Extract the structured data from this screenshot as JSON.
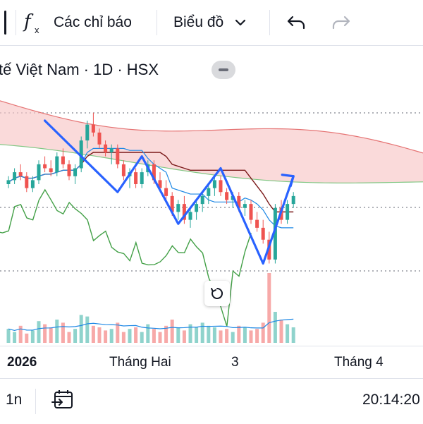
{
  "toolbar": {
    "fx_label": "f",
    "indicators_label": "Các chỉ báo",
    "chart_type_label": "Biểu đồ"
  },
  "legend": {
    "symbol_text": "tế Việt Nam · 1D · HSX"
  },
  "xaxis": {
    "labels": [
      "2026",
      "Tháng Hai",
      "3",
      "Tháng 4"
    ]
  },
  "bottombar": {
    "range_label": "1n",
    "time_label": "20:14:20"
  },
  "colors": {
    "up": "#26a69a",
    "down": "#ef5350",
    "cloud": "#f7c6c6",
    "drawing": "#2962ff",
    "signal": "#1e88e5",
    "lagging": "#43a047",
    "base": "#7b1a1a"
  },
  "chart_data": {
    "type": "candlestick",
    "xlabels": [
      "2026",
      "Tháng Hai",
      "3",
      "Tháng 4"
    ],
    "candles": [
      [
        100,
        102,
        99,
        101
      ],
      [
        101,
        104,
        100,
        103
      ],
      [
        103,
        105,
        101,
        102
      ],
      [
        102,
        103,
        98,
        99
      ],
      [
        99,
        102,
        98,
        101
      ],
      [
        101,
        106,
        100,
        105
      ],
      [
        105,
        107,
        103,
        104
      ],
      [
        104,
        106,
        102,
        103
      ],
      [
        103,
        108,
        102,
        107
      ],
      [
        107,
        109,
        104,
        105
      ],
      [
        105,
        106,
        101,
        102
      ],
      [
        102,
        105,
        100,
        104
      ],
      [
        104,
        112,
        103,
        111
      ],
      [
        111,
        116,
        109,
        115
      ],
      [
        115,
        118,
        112,
        113
      ],
      [
        113,
        114,
        109,
        110
      ],
      [
        110,
        111,
        107,
        108
      ],
      [
        108,
        110,
        105,
        109
      ],
      [
        109,
        110,
        104,
        105
      ],
      [
        105,
        106,
        101,
        102
      ],
      [
        102,
        104,
        99,
        103
      ],
      [
        103,
        104,
        99,
        100
      ],
      [
        100,
        104,
        99,
        103
      ],
      [
        103,
        106,
        102,
        105
      ],
      [
        105,
        106,
        100,
        101
      ],
      [
        101,
        103,
        98,
        99
      ],
      [
        99,
        101,
        96,
        97
      ],
      [
        97,
        98,
        92,
        93
      ],
      [
        93,
        96,
        91,
        95
      ],
      [
        95,
        97,
        90,
        91
      ],
      [
        91,
        94,
        89,
        93
      ],
      [
        93,
        96,
        91,
        95
      ],
      [
        95,
        98,
        93,
        97
      ],
      [
        97,
        100,
        95,
        99
      ],
      [
        99,
        102,
        97,
        101
      ],
      [
        101,
        102,
        97,
        98
      ],
      [
        98,
        99,
        95,
        96
      ],
      [
        96,
        98,
        94,
        97
      ],
      [
        97,
        98,
        93,
        94
      ],
      [
        94,
        96,
        92,
        95
      ],
      [
        95,
        96,
        90,
        91
      ],
      [
        91,
        93,
        88,
        89
      ],
      [
        89,
        91,
        85,
        86
      ],
      [
        86,
        88,
        80,
        81
      ],
      [
        81,
        95,
        80,
        94
      ],
      [
        94,
        96,
        90,
        91
      ],
      [
        91,
        96,
        90,
        95
      ],
      [
        95,
        98,
        94,
        97
      ]
    ],
    "volume": [
      18,
      14,
      22,
      12,
      16,
      28,
      24,
      20,
      30,
      26,
      14,
      18,
      36,
      34,
      22,
      20,
      16,
      18,
      26,
      14,
      18,
      20,
      14,
      24,
      18,
      14,
      22,
      30,
      20,
      16,
      24,
      20,
      26,
      22,
      20,
      16,
      18,
      14,
      22,
      20,
      16,
      18,
      26,
      90,
      40,
      30,
      24,
      20
    ]
  }
}
